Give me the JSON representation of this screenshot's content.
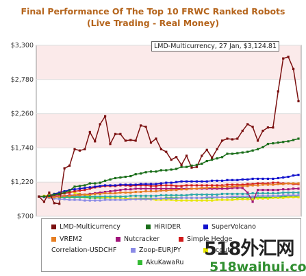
{
  "chart_data": {
    "type": "line",
    "title_line1": "Final Performance Of The Top 10 FRWC Ranked Robots",
    "title_line2": "(Live Trading - Real Money)",
    "y_ticks": [
      "$3,300",
      "$2,780",
      "$2,260",
      "$1,740",
      "$1,220",
      "$700"
    ],
    "y_tick_values": [
      3300,
      2780,
      2260,
      1740,
      1220,
      700
    ],
    "ylim": [
      700,
      3300
    ],
    "grid": true,
    "tooltip": "LMD-Multicurrency, 27 Jan, $3,124.81",
    "legend_position": "bottom",
    "series": [
      {
        "name": "LMD-Multicurrency",
        "color": "#7b1010",
        "values": [
          1000,
          920,
          1060,
          900,
          890,
          1430,
          1470,
          1720,
          1700,
          1720,
          1980,
          1840,
          2100,
          2220,
          1800,
          1950,
          1950,
          1850,
          1860,
          1850,
          2080,
          2060,
          1820,
          1880,
          1720,
          1680,
          1560,
          1600,
          1480,
          1620,
          1440,
          1450,
          1620,
          1710,
          1590,
          1720,
          1850,
          1880,
          1870,
          1880,
          2000,
          2100,
          2060,
          1850,
          2000,
          2050,
          2050,
          2600,
          3100,
          3124.81,
          2940,
          2450
        ]
      },
      {
        "name": "HiRIDER",
        "color": "#1a6e1a",
        "values": [
          1000,
          1000,
          1010,
          1030,
          1040,
          1060,
          1090,
          1150,
          1160,
          1170,
          1200,
          1200,
          1210,
          1240,
          1260,
          1280,
          1290,
          1300,
          1310,
          1340,
          1350,
          1370,
          1380,
          1380,
          1400,
          1400,
          1410,
          1420,
          1450,
          1450,
          1470,
          1480,
          1500,
          1540,
          1560,
          1580,
          1600,
          1650,
          1650,
          1660,
          1670,
          1680,
          1700,
          1720,
          1750,
          1800,
          1810,
          1820,
          1830,
          1840,
          1860,
          1880
        ]
      },
      {
        "name": "SuperVolcano",
        "color": "#1111cc",
        "values": [
          1000,
          1000,
          1010,
          1040,
          1060,
          1080,
          1100,
          1110,
          1120,
          1130,
          1140,
          1150,
          1160,
          1170,
          1170,
          1170,
          1180,
          1180,
          1180,
          1180,
          1190,
          1190,
          1190,
          1190,
          1200,
          1210,
          1210,
          1220,
          1230,
          1230,
          1230,
          1230,
          1230,
          1230,
          1240,
          1240,
          1240,
          1250,
          1250,
          1250,
          1260,
          1260,
          1270,
          1270,
          1270,
          1270,
          1270,
          1280,
          1290,
          1300,
          1320,
          1330
        ]
      },
      {
        "name": "VREM2",
        "color": "#e67e22",
        "values": [
          1000,
          1000,
          990,
          990,
          1000,
          1010,
          1010,
          1020,
          1020,
          1030,
          1030,
          1040,
          1040,
          1050,
          1050,
          1050,
          1060,
          1060,
          1060,
          1070,
          1070,
          1080,
          1080,
          1080,
          1090,
          1090,
          1100,
          1100,
          1110,
          1110,
          1120,
          1120,
          1130,
          1130,
          1140,
          1140,
          1150,
          1150,
          1150,
          1160,
          1160,
          1160,
          1170,
          1170,
          1180,
          1180,
          1180,
          1190,
          1190,
          1200,
          1200,
          1200
        ]
      },
      {
        "name": "Nutcracker",
        "color": "#a0147a",
        "values": [
          1000,
          1000,
          1000,
          1000,
          1010,
          1010,
          1020,
          1020,
          1030,
          1030,
          1040,
          1050,
          1060,
          1070,
          1080,
          1090,
          1100,
          1110,
          1110,
          1120,
          1120,
          1120,
          1120,
          1120,
          1120,
          1120,
          1120,
          1120,
          1120,
          1120,
          1120,
          1120,
          1120,
          1120,
          1120,
          1120,
          1120,
          1120,
          1130,
          1130,
          1130,
          1060,
          920,
          1100,
          1100,
          1100,
          1100,
          1100,
          1110,
          1110,
          1120,
          1120
        ]
      },
      {
        "name": "Simple Hedge",
        "color": "#d11a1a",
        "values": [
          1000,
          1000,
          1010,
          1020,
          1030,
          1050,
          1060,
          1080,
          1090,
          1100,
          1120,
          1140,
          1150,
          1160,
          1160,
          1160,
          1170,
          1170,
          1160,
          1170,
          1170,
          1170,
          1160,
          1160,
          1170,
          1170,
          1170,
          1160,
          1160,
          1170,
          1170,
          1170,
          1170,
          1170,
          1170,
          1170,
          1170,
          1180,
          1180,
          1180,
          1180,
          1190,
          1190,
          1200,
          1200,
          1200,
          1210,
          1210,
          1200,
          1200,
          1190,
          1190
        ]
      },
      {
        "name": "Correlation-USDCHF",
        "color": "#2aa8a8",
        "values": [
          1000,
          1000,
          1000,
          1000,
          1000,
          1000,
          1000,
          1000,
          1000,
          1000,
          1000,
          1000,
          1000,
          1000,
          1000,
          1000,
          1000,
          1000,
          1010,
          1010,
          1010,
          1010,
          1010,
          1010,
          1020,
          1020,
          1020,
          1020,
          1020,
          1020,
          1030,
          1030,
          1030,
          1030,
          1030,
          1030,
          1040,
          1040,
          1040,
          1040,
          1040,
          1040,
          1050,
          1050,
          1050,
          1050,
          1050,
          1050,
          1060,
          1060,
          1060,
          1060
        ]
      },
      {
        "name": "Zoop-EURJPY",
        "color": "#8a8ae6",
        "values": [
          1000,
          990,
          980,
          970,
          960,
          960,
          950,
          950,
          950,
          940,
          940,
          940,
          940,
          950,
          950,
          950,
          950,
          950,
          960,
          960,
          960,
          960,
          960,
          970,
          970,
          970,
          970,
          970,
          980,
          980,
          980,
          980,
          980,
          990,
          990,
          990,
          990,
          990,
          1000,
          1000,
          1000,
          1000,
          1000,
          1010,
          1010,
          1010,
          1010,
          1010,
          1020,
          1020,
          1020,
          1020
        ]
      },
      {
        "name": "Scout",
        "color": "#e6e600",
        "values": [
          1000,
          1010,
          1020,
          1040,
          1060,
          1080,
          1080,
          1060,
          1040,
          1020,
          1010,
          1000,
          990,
          990,
          980,
          980,
          980,
          970,
          970,
          970,
          960,
          960,
          960,
          950,
          950,
          950,
          950,
          940,
          940,
          940,
          940,
          940,
          940,
          940,
          940,
          950,
          950,
          950,
          950,
          960,
          960,
          960,
          960,
          970,
          970,
          970,
          980,
          980,
          980,
          990,
          990,
          990
        ]
      },
      {
        "name": "AkuKawaRu",
        "color": "#33bb33",
        "values": [
          1000,
          1000,
          1000,
          1000,
          990,
          990,
          990,
          990,
          990,
          990,
          980,
          980,
          980,
          980,
          980,
          980,
          980,
          970,
          970,
          970,
          970,
          970,
          970,
          970,
          970,
          980,
          980,
          980,
          980,
          980,
          980,
          980,
          980,
          980,
          980,
          990,
          990,
          990,
          990,
          990,
          990,
          990,
          990,
          990,
          990,
          990,
          990,
          990,
          1000,
          1000,
          1000,
          1000
        ]
      }
    ]
  },
  "legend": {
    "items": [
      {
        "label": "LMD-Multicurrency",
        "color": "#7b1010"
      },
      {
        "label": "HiRIDER",
        "color": "#1a6e1a"
      },
      {
        "label": "SuperVolcano",
        "color": "#1111cc"
      },
      {
        "label": "VREM2",
        "color": "#e67e22"
      },
      {
        "label": "Nutcracker",
        "color": "#a0147a"
      },
      {
        "label": "Simple Hedge",
        "color": "#d11a1a"
      },
      {
        "label": "Correlation-USDCHF",
        "color": ""
      },
      {
        "label": "Zoop-EURJPY",
        "color": "#8a8ae6"
      },
      {
        "label": "Scout",
        "color": "#e6e600"
      },
      {
        "label": "AkuKawaRu",
        "color": "#33bb33"
      }
    ]
  },
  "watermark": {
    "top": "518外汇网",
    "bottom": "518waihui.com"
  }
}
